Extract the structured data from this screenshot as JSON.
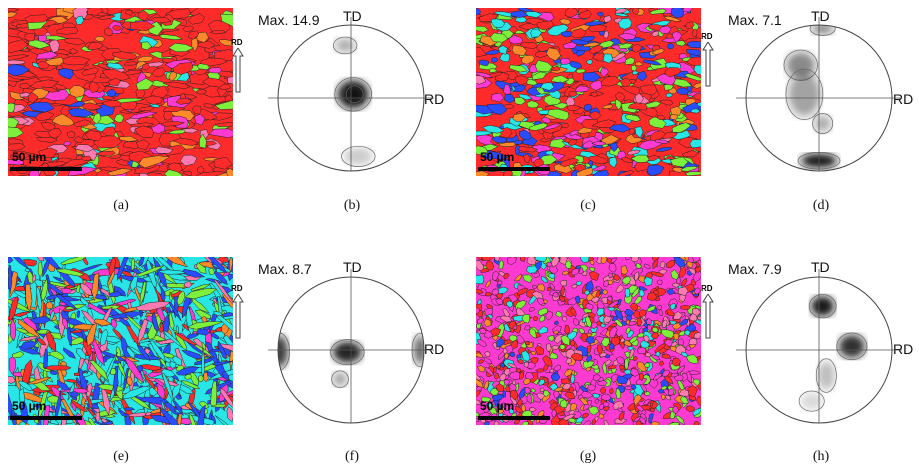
{
  "panels": [
    {
      "caption": "(a)",
      "scale_label": "50 µm",
      "direction_label": "RD"
    },
    {
      "caption": "(b)",
      "max_label": "Max. 14.9",
      "td_label": "TD",
      "rd_label": "RD"
    },
    {
      "caption": "(c)",
      "scale_label": "50 µm",
      "direction_label": "RD"
    },
    {
      "caption": "(d)",
      "max_label": "Max. 7.1",
      "td_label": "TD",
      "rd_label": "RD"
    },
    {
      "caption": "(e)",
      "scale_label": "50 µm",
      "direction_label": "RD"
    },
    {
      "caption": "(f)",
      "max_label": "Max. 8.7",
      "td_label": "TD",
      "rd_label": "RD"
    },
    {
      "caption": "(g)",
      "scale_label": "50 µm",
      "direction_label": "RD"
    },
    {
      "caption": "(h)",
      "max_label": "Max. 7.9",
      "td_label": "TD",
      "rd_label": "RD"
    }
  ],
  "colors": {
    "grain_red": "#ff2a2a",
    "grain_orange": "#ff8a2a",
    "grain_green": "#7cf03a",
    "grain_cyan": "#28e6e6",
    "grain_blue": "#2a4cff",
    "grain_magenta": "#ff3ad0",
    "grain_pink": "#ff7ab0",
    "pf_dark": "#111111"
  }
}
